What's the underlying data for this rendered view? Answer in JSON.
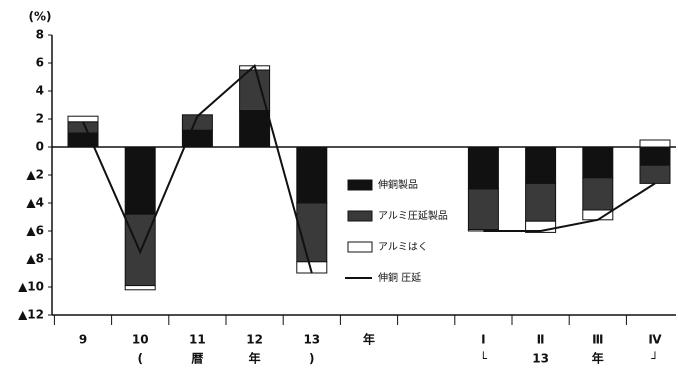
{
  "chart_data": {
    "type": "bar",
    "y_unit": "(%)",
    "categories": [
      "9",
      "10",
      "11",
      "12",
      "13",
      "年",
      null,
      "Ⅰ",
      "Ⅱ",
      "Ⅲ",
      "Ⅳ"
    ],
    "sublabels": [
      null,
      "(",
      "暦",
      "年",
      ")",
      null,
      null,
      "└",
      "13",
      "年",
      "┘"
    ],
    "series": [
      {
        "name": "伸銅製品",
        "color": "#111111",
        "values": [
          1.0,
          -4.8,
          1.2,
          2.6,
          -4.0,
          null,
          null,
          -3.0,
          -2.6,
          -2.2,
          -1.3
        ]
      },
      {
        "name": "アルミ圧延製品",
        "color": "#3a3a3a",
        "values": [
          0.8,
          -5.1,
          1.1,
          2.9,
          -4.2,
          null,
          null,
          -2.9,
          -2.7,
          -2.3,
          -1.3
        ]
      },
      {
        "name": "アルミはく",
        "color": "#ffffff",
        "values": [
          0.4,
          -0.3,
          0,
          0.3,
          -0.8,
          null,
          null,
          -0.1,
          -0.8,
          -0.7,
          0.5
        ]
      },
      {
        "name": "伸銅 圧延",
        "type": "line",
        "color": "#111111",
        "values": [
          1.8,
          -7.5,
          2.2,
          5.8,
          -9.0,
          null,
          null,
          -6.0,
          -6.0,
          -5.2,
          -2.6
        ]
      }
    ],
    "ylim": [
      -12,
      8
    ],
    "yticks": [
      {
        "value": -12,
        "label": "▲12"
      },
      {
        "value": -10,
        "label": "▲10"
      },
      {
        "value": -8,
        "label": "▲8"
      },
      {
        "value": -6,
        "label": "▲6"
      },
      {
        "value": -4,
        "label": "▲4"
      },
      {
        "value": -2,
        "label": "▲2"
      },
      0,
      2,
      4,
      6,
      8
    ]
  }
}
